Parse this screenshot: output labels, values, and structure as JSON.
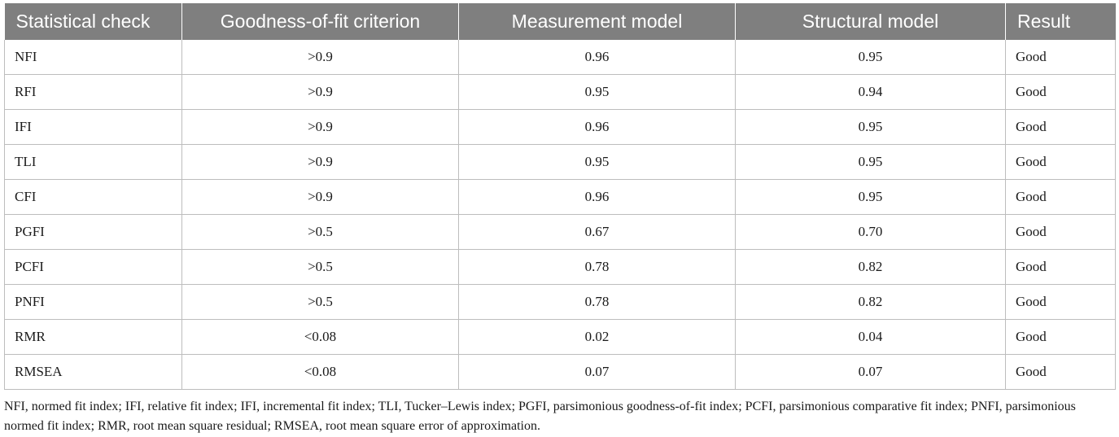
{
  "table": {
    "headers": [
      "Statistical check",
      "Goodness-of-fit criterion",
      "Measurement model",
      "Structural model",
      "Result"
    ],
    "rows": [
      [
        "NFI",
        ">0.9",
        "0.96",
        "0.95",
        "Good"
      ],
      [
        "RFI",
        ">0.9",
        "0.95",
        "0.94",
        "Good"
      ],
      [
        "IFI",
        ">0.9",
        "0.96",
        "0.95",
        "Good"
      ],
      [
        "TLI",
        ">0.9",
        "0.95",
        "0.95",
        "Good"
      ],
      [
        "CFI",
        ">0.9",
        "0.96",
        "0.95",
        "Good"
      ],
      [
        "PGFI",
        ">0.5",
        "0.67",
        "0.70",
        "Good"
      ],
      [
        "PCFI",
        ">0.5",
        "0.78",
        "0.82",
        "Good"
      ],
      [
        "PNFI",
        ">0.5",
        "0.78",
        "0.82",
        "Good"
      ],
      [
        "RMR",
        "<0.08",
        "0.02",
        "0.04",
        "Good"
      ],
      [
        "RMSEA",
        "<0.08",
        "0.07",
        "0.07",
        "Good"
      ]
    ],
    "header_bg": "#7f7f7f",
    "header_fg": "#ffffff"
  },
  "footnote": "NFI, normed fit index; IFI, relative fit index; IFI, incremental fit index; TLI, Tucker–Lewis index; PGFI, parsimonious goodness-of-fit index; PCFI, parsimonious comparative fit index; PNFI, parsimonious normed fit index; RMR, root mean square residual; RMSEA, root mean square error of approximation."
}
